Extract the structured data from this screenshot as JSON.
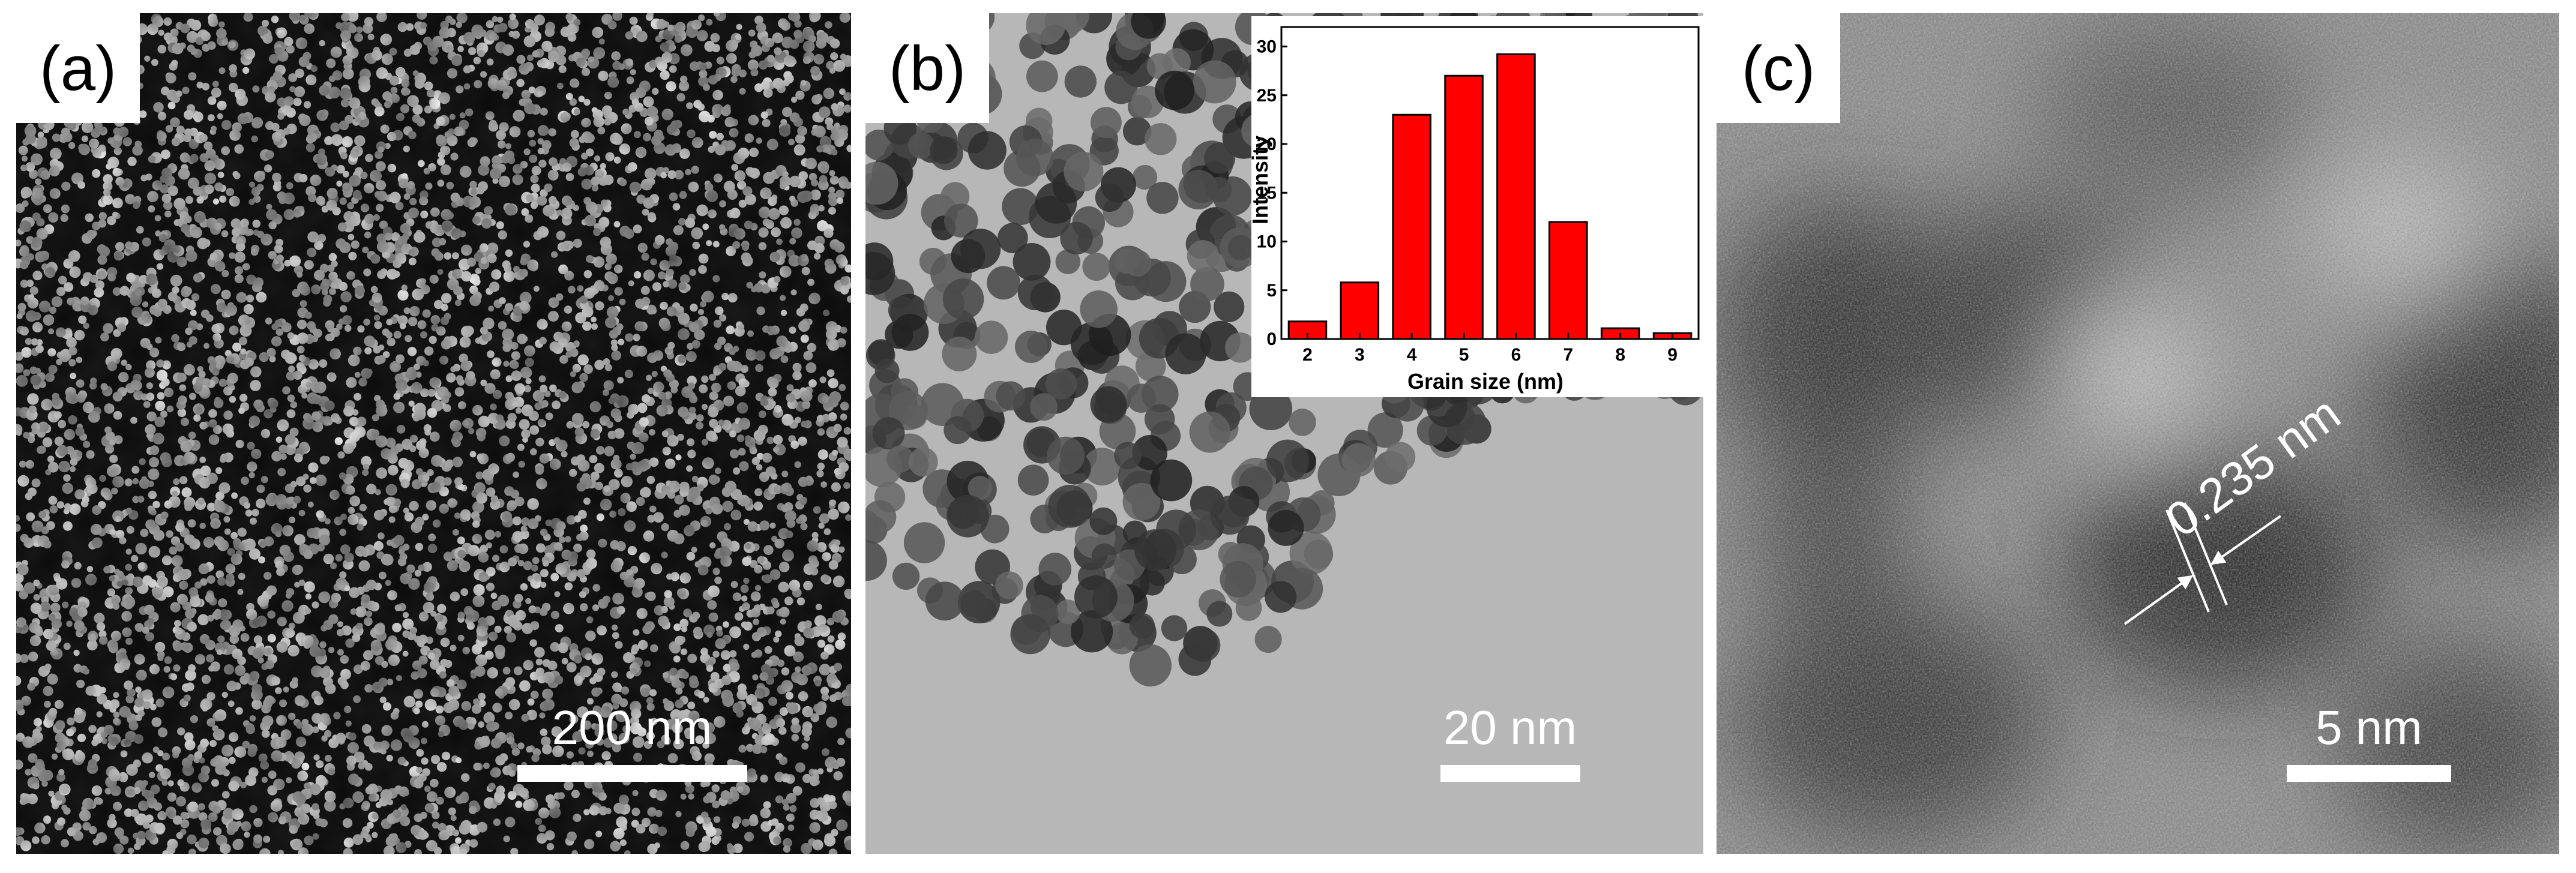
{
  "panels": [
    {
      "label": "(a)",
      "scale_bar": "200 nm"
    },
    {
      "label": "(b)",
      "scale_bar": "20 nm"
    },
    {
      "label": "(c)",
      "scale_bar": "5 nm",
      "annotation": "0.235 nm"
    }
  ],
  "chart_data": {
    "type": "bar",
    "x_label": "Grain size (nm)",
    "y_label": "Intensity",
    "categories": [
      "2",
      "3",
      "4",
      "5",
      "6",
      "7",
      "8",
      "9"
    ],
    "values": [
      1.8,
      5.8,
      23,
      27,
      29.2,
      12,
      1.1,
      0.6
    ],
    "color": "#ff0000",
    "ylim": [
      0,
      32
    ],
    "yticks": [
      0,
      5,
      10,
      15,
      20,
      25,
      30
    ]
  }
}
